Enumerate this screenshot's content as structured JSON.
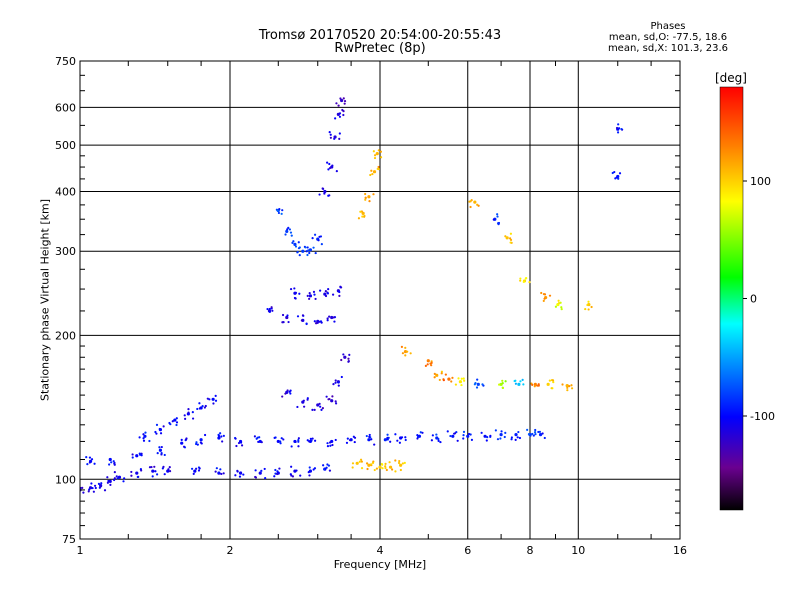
{
  "title": "Tromsø 20170520 20:54:00-20:55:43",
  "subtitle": "RwPretec (8p)",
  "stats": {
    "heading": "Phases",
    "line_o": "mean, sd,O: -77.5, 18.6",
    "line_x": "mean, sd,X: 101.3, 23.6"
  },
  "chart_data": {
    "type": "scatter",
    "title": "Tromsø 20170520 20:54:00-20:55:43",
    "subtitle": "RwPretec (8p)",
    "xlabel": "Frequency [MHz]",
    "ylabel": "Stationary phase Virtual Height [km]",
    "x_scale": "log",
    "y_scale": "log",
    "xlim": [
      1,
      16
    ],
    "ylim": [
      75,
      750
    ],
    "x_ticks": [
      1,
      2,
      4,
      6,
      8,
      10,
      16
    ],
    "x_tick_labels": [
      "1",
      "2",
      "4",
      "6",
      "8",
      "10",
      "16"
    ],
    "y_ticks": [
      75,
      100,
      200,
      300,
      400,
      500,
      600,
      750
    ],
    "y_tick_labels": [
      "75",
      "100",
      "200",
      "300",
      "400",
      "500",
      "600",
      "750"
    ],
    "grid": true,
    "colorbar": {
      "label": "[deg]",
      "range": [
        -180,
        180
      ],
      "ticks": [
        100,
        0,
        -100
      ],
      "tick_labels": [
        "100",
        "0",
        "-100"
      ],
      "colors": [
        "#000000",
        "#6a0090",
        "#0000ff",
        "#00a0ff",
        "#00ffff",
        "#00ff00",
        "#ffff00",
        "#ff8000",
        "#ff0000"
      ]
    },
    "traces": [
      {
        "name": "low-band-lower",
        "points": [
          [
            1.0,
            95,
            -110
          ],
          [
            1.05,
            96,
            -112
          ],
          [
            1.1,
            97,
            -108
          ],
          [
            1.15,
            99,
            -110
          ],
          [
            1.2,
            101,
            -106
          ],
          [
            1.3,
            103,
            -108
          ],
          [
            1.4,
            104,
            -106
          ],
          [
            1.5,
            104,
            -104
          ],
          [
            1.7,
            104,
            -102
          ],
          [
            1.9,
            103,
            -104
          ],
          [
            2.1,
            103,
            -105
          ],
          [
            2.3,
            103,
            -106
          ],
          [
            2.5,
            103,
            -104
          ],
          [
            2.7,
            104,
            -105
          ],
          [
            2.9,
            104,
            -103
          ],
          [
            3.1,
            105,
            -100
          ]
        ]
      },
      {
        "name": "low-band-upper",
        "points": [
          [
            1.05,
            109,
            -100
          ],
          [
            1.15,
            110,
            -98
          ],
          [
            1.3,
            112,
            -100
          ],
          [
            1.45,
            115,
            -96
          ],
          [
            1.6,
            119,
            -98
          ],
          [
            1.75,
            121,
            -95
          ],
          [
            1.9,
            122,
            -98
          ],
          [
            2.1,
            120,
            -100
          ],
          [
            2.3,
            120,
            -98
          ],
          [
            2.5,
            120,
            -102
          ],
          [
            2.7,
            120,
            -100
          ],
          [
            2.9,
            120,
            -99
          ],
          [
            3.2,
            120,
            -100
          ],
          [
            3.5,
            121,
            -98
          ],
          [
            3.8,
            121,
            -95
          ],
          [
            4.1,
            121,
            -90
          ],
          [
            4.4,
            122,
            -100
          ],
          [
            4.8,
            123,
            -95
          ],
          [
            5.2,
            122,
            -90
          ],
          [
            5.6,
            123,
            -95
          ],
          [
            6.0,
            123,
            -92
          ],
          [
            6.5,
            123,
            -90
          ],
          [
            7.0,
            124,
            -88
          ],
          [
            7.5,
            124,
            -92
          ],
          [
            8.0,
            124,
            -85
          ],
          [
            8.4,
            124,
            -90
          ]
        ]
      },
      {
        "name": "rising-branch",
        "points": [
          [
            1.35,
            123,
            -95
          ],
          [
            1.45,
            127,
            -100
          ],
          [
            1.55,
            133,
            -98
          ],
          [
            1.65,
            137,
            -102
          ],
          [
            1.75,
            141,
            -100
          ],
          [
            1.85,
            147,
            -96
          ]
        ]
      },
      {
        "name": "E-region-O",
        "points": [
          [
            2.6,
            152,
            -110
          ],
          [
            2.8,
            145,
            -112
          ],
          [
            3.0,
            143,
            -114
          ],
          [
            3.2,
            146,
            -115
          ],
          [
            3.3,
            160,
            -112
          ],
          [
            3.4,
            180,
            -118
          ]
        ]
      },
      {
        "name": "E-region-X",
        "points": [
          [
            3.6,
            108,
            105
          ],
          [
            3.8,
            107,
            110
          ],
          [
            4.0,
            106,
            102
          ],
          [
            4.2,
            106,
            108
          ],
          [
            4.4,
            107,
            106
          ]
        ]
      },
      {
        "name": "F1-O",
        "points": [
          [
            2.4,
            225,
            -112
          ],
          [
            2.6,
            218,
            -110
          ],
          [
            2.8,
            215,
            -108
          ],
          [
            3.0,
            214,
            -110
          ],
          [
            3.2,
            218,
            -114
          ]
        ]
      },
      {
        "name": "F1-X",
        "points": [
          [
            2.7,
            245,
            -105
          ],
          [
            2.9,
            242,
            -108
          ],
          [
            3.1,
            244,
            -110
          ],
          [
            3.3,
            248,
            -112
          ]
        ]
      },
      {
        "name": "F2-O",
        "points": [
          [
            2.5,
            365,
            -80
          ],
          [
            2.6,
            330,
            -82
          ],
          [
            2.7,
            310,
            -84
          ],
          [
            2.8,
            300,
            -82
          ],
          [
            2.9,
            302,
            -85
          ],
          [
            3.0,
            318,
            -88
          ]
        ]
      },
      {
        "name": "F2-X",
        "points": [
          [
            3.1,
            400,
            -110
          ],
          [
            3.2,
            450,
            -112
          ],
          [
            3.25,
            520,
            -114
          ],
          [
            3.3,
            580,
            -115
          ],
          [
            3.35,
            620,
            -118
          ]
        ]
      },
      {
        "name": "F2-X-phase",
        "points": [
          [
            3.7,
            360,
            110
          ],
          [
            3.8,
            390,
            115
          ],
          [
            3.9,
            440,
            112
          ],
          [
            3.95,
            480,
            110
          ]
        ]
      },
      {
        "name": "high-band-echo",
        "points": [
          [
            4.5,
            185,
            120
          ],
          [
            5.0,
            177,
            130
          ],
          [
            5.2,
            165,
            110
          ],
          [
            5.5,
            162,
            140
          ],
          [
            5.8,
            160,
            90
          ],
          [
            6.3,
            158,
            -80
          ],
          [
            7.0,
            158,
            60
          ],
          [
            7.6,
            158,
            -40
          ],
          [
            8.2,
            158,
            130
          ],
          [
            8.7,
            158,
            100
          ],
          [
            9.5,
            157,
            110
          ]
        ]
      },
      {
        "name": "sporadic-high",
        "points": [
          [
            6.2,
            380,
            110
          ],
          [
            6.8,
            350,
            -90
          ],
          [
            7.2,
            320,
            105
          ],
          [
            7.8,
            260,
            95
          ],
          [
            8.6,
            240,
            120
          ],
          [
            9.1,
            232,
            80
          ],
          [
            10.5,
            232,
            105
          ],
          [
            12.0,
            430,
            -95
          ],
          [
            12.0,
            540,
            -100
          ]
        ]
      }
    ]
  }
}
